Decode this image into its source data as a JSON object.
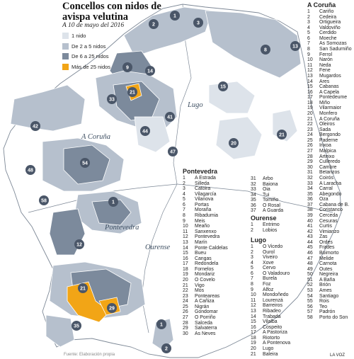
{
  "title": "Concellos con nidos de avispa velutina",
  "subtitle": "A 10 de mayo del 2016",
  "legend": [
    {
      "label": "1 nido",
      "color": "#dde3ea"
    },
    {
      "label": "De 2 a 5 nidos",
      "color": "#b6c0cd"
    },
    {
      "label": "De 6 a 25 nidos",
      "color": "#7c8a9c"
    },
    {
      "label": "Más de 25 nidos",
      "color": "#f2a516"
    }
  ],
  "regions": {
    "coruna": "A Coruña",
    "lugo": "Lugo",
    "pontevedra": "Pontevedra",
    "ourense": "Ourense"
  },
  "lists": {
    "coruna": {
      "head": "A Coruña",
      "items": [
        "Cariño",
        "Cedeira",
        "Ortigueira",
        "Valdoviño",
        "Cerdido",
        "Moeche",
        "As Somozas",
        "San Sadurniño",
        "Ferrol",
        "Narón",
        "Neda",
        "Fene",
        "Mugardos",
        "Ares",
        "Cabanas",
        "A Capela",
        "Pontedeume",
        "Miño",
        "Vilarmaior",
        "Monfero",
        "A Coruña",
        "Oleiros",
        "Sada",
        "Bergondo",
        "Paderne",
        "Irixoa",
        "Malpica",
        "Arteixo",
        "Culleredo",
        "Cambre",
        "Betanzos",
        "Coirós",
        "A Laracha",
        "Carral",
        "Abegondo",
        "Oza",
        "Cabana de B.",
        "Coristanco",
        "Cerceda",
        "Cesuras",
        "Curtis",
        "Vimianzo",
        "Zas",
        "Ordes",
        "Frades",
        "Boimorto",
        "Melide",
        "Carnota",
        "Outes",
        "Negreira",
        "A Baña",
        "Brión",
        "Ames",
        "Santiago",
        "Rois",
        "Teo",
        "Padrón",
        "Porto do Son"
      ]
    },
    "pontevedra": {
      "head": "Pontevedra",
      "items": [
        "A Estrada",
        "Silleda",
        "Catoira",
        "Vilagarcía",
        "Vilanova",
        "Portas",
        "Moraña",
        "Ribadumia",
        "Meis",
        "Meaño",
        "Sanxenxo",
        "Pontevedra",
        "Marín",
        "Ponte Caldelas",
        "Bueu",
        "Cangas",
        "Redondela",
        "Fornelos",
        "Mondariz",
        "O Covelo",
        "Vigo",
        "Mos",
        "Ponteareas",
        "A Cañiza",
        "Nigrán",
        "Gondomar",
        "O Porriño",
        "Salceda",
        "Salvaterra",
        "As Neves"
      ]
    },
    "pontevedra_cont": {
      "items": [
        "Arbo",
        "Baiona",
        "Oia",
        "Tui",
        "Tomiño",
        "O Rosal",
        "A Guarda"
      ]
    },
    "ourense": {
      "head": "Ourense",
      "items": [
        "Entrimo",
        "Lobios"
      ]
    },
    "lugo": {
      "head": "Lugo",
      "items": [
        "O Vicedo",
        "Ourol",
        "Viveiro",
        "Xove",
        "Cervo",
        "O Valadouro",
        "Burela",
        "Foz",
        "Alfoz",
        "Mondoñedo",
        "Lourenzá",
        "Barreiros",
        "Ribadeo",
        "Trabada",
        "Vilalba",
        "Cospeito",
        "A Pastoriza",
        "Riotorto",
        "A Pontenova",
        "Lugo",
        "Baleira"
      ]
    }
  },
  "source": "Fuente: Elaboración propia",
  "brand": "LA VOZ"
}
